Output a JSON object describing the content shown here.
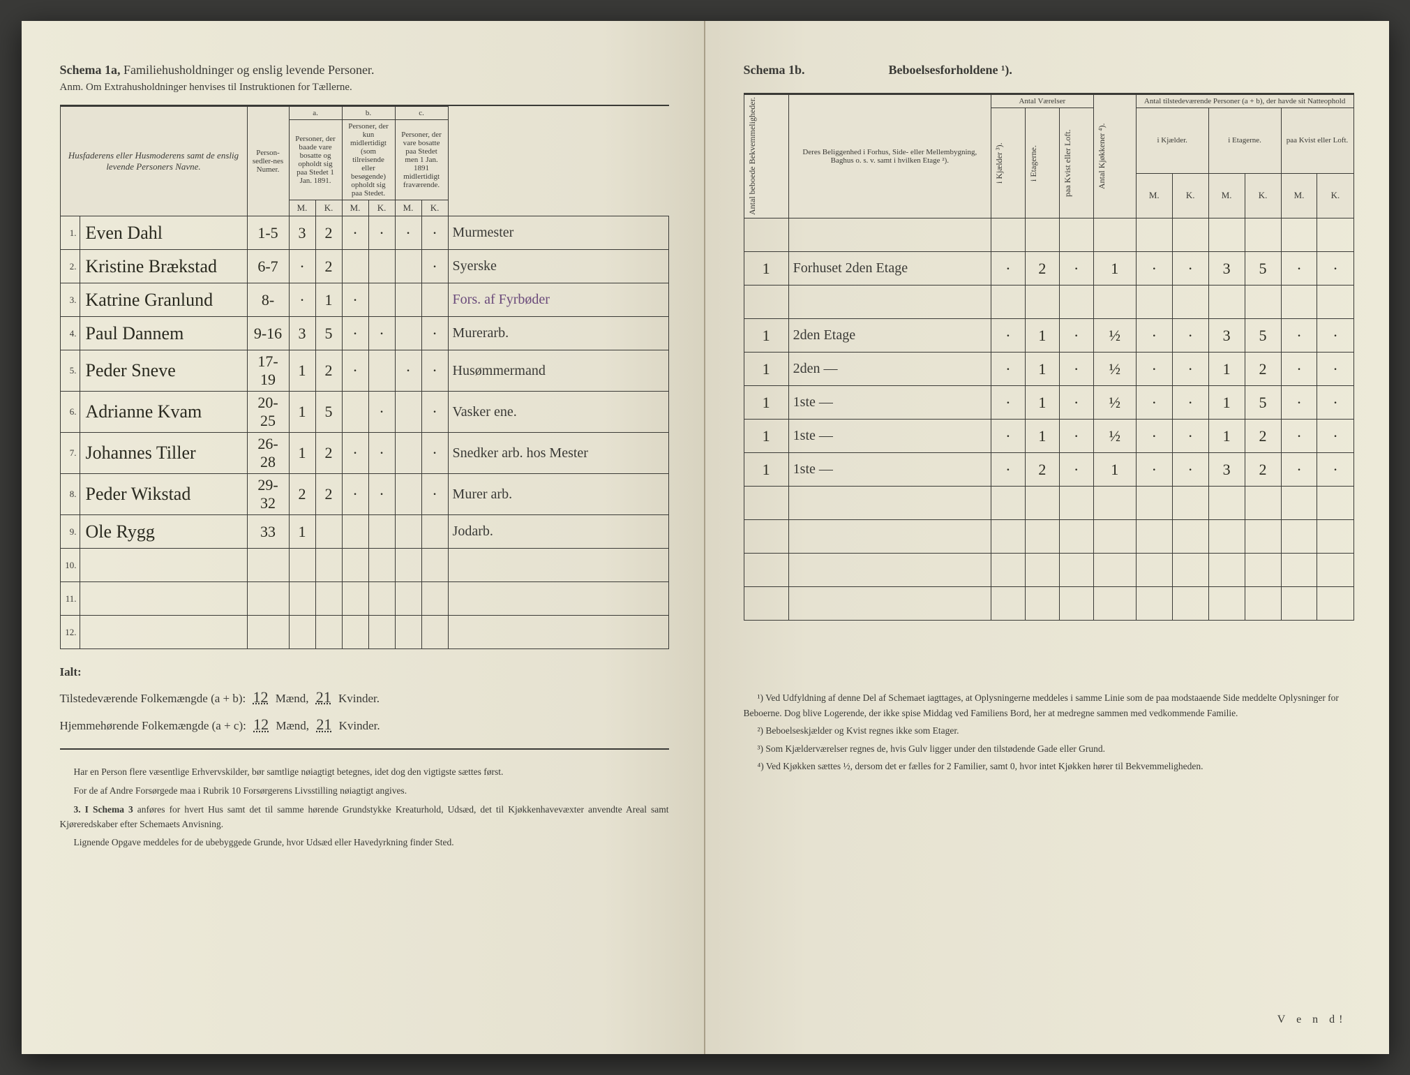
{
  "left": {
    "title_bold": "Schema 1a,",
    "title_rest": "Familiehusholdninger og enslig levende Personer.",
    "sub": "Anm. Om Extrahusholdninger henvises til Instruktionen for Tællerne.",
    "col_name": "Husfaderens eller Husmoderens samt de enslig levende Personers Navne.",
    "col_num": "Person-sedler-nes Numer.",
    "col_a_head": "a.",
    "col_a": "Personer, der baade vare bosatte og opholdt sig paa Stedet 1 Jan. 1891.",
    "col_b_head": "b.",
    "col_b": "Personer, der kun midlertidigt (som tilreisende eller besøgende) opholdt sig paa Stedet.",
    "col_c_head": "c.",
    "col_c": "Personer, der vare bosatte paa Stedet men 1 Jan. 1891 midlertidigt fraværende.",
    "mk_m": "M.",
    "mk_k": "K.",
    "rows": [
      {
        "n": "1.",
        "name": "Even Dahl",
        "num": "1-5",
        "aM": "3",
        "aK": "2",
        "bM": "·",
        "bK": "·",
        "cM": "·",
        "cK": "·",
        "occ": "Murmester"
      },
      {
        "n": "2.",
        "name": "Kristine Brækstad",
        "num": "6-7",
        "aM": "·",
        "aK": "2",
        "bM": "",
        "bK": "",
        "cM": "",
        "cK": "·",
        "occ": "Syerske"
      },
      {
        "n": "3.",
        "name": "Katrine Granlund",
        "num": "8-",
        "aM": "·",
        "aK": "1",
        "bM": "·",
        "bK": "",
        "cM": "",
        "cK": "",
        "occ": "Fors. af Fyrbøder"
      },
      {
        "n": "4.",
        "name": "Paul Dannem",
        "num": "9-16",
        "aM": "3",
        "aK": "5",
        "bM": "·",
        "bK": "·",
        "cM": "",
        "cK": "·",
        "occ": "Murerarb."
      },
      {
        "n": "5.",
        "name": "Peder Sneve",
        "num": "17-19",
        "aM": "1",
        "aK": "2",
        "bM": "·",
        "bK": "",
        "cM": "·",
        "cK": "·",
        "occ": "Husømmermand"
      },
      {
        "n": "6.",
        "name": "Adrianne Kvam",
        "num": "20-25",
        "aM": "1",
        "aK": "5",
        "bM": "",
        "bK": "·",
        "cM": "",
        "cK": "·",
        "occ": "Vasker ene."
      },
      {
        "n": "7.",
        "name": "Johannes Tiller",
        "num": "26-28",
        "aM": "1",
        "aK": "2",
        "bM": "·",
        "bK": "·",
        "cM": "",
        "cK": "·",
        "occ": "Snedker arb. hos Mester"
      },
      {
        "n": "8.",
        "name": "Peder Wikstad",
        "num": "29-32",
        "aM": "2",
        "aK": "2",
        "bM": "·",
        "bK": "·",
        "cM": "",
        "cK": "·",
        "occ": "Murer arb."
      },
      {
        "n": "9.",
        "name": "Ole Rygg",
        "num": "33",
        "aM": "1",
        "aK": "",
        "bM": "",
        "bK": "",
        "cM": "",
        "cK": "",
        "occ": "Jodarb."
      },
      {
        "n": "10.",
        "name": "",
        "num": "",
        "aM": "",
        "aK": "",
        "bM": "",
        "bK": "",
        "cM": "",
        "cK": "",
        "occ": ""
      },
      {
        "n": "11.",
        "name": "",
        "num": "",
        "aM": "",
        "aK": "",
        "bM": "",
        "bK": "",
        "cM": "",
        "cK": "",
        "occ": ""
      },
      {
        "n": "12.",
        "name": "",
        "num": "",
        "aM": "",
        "aK": "",
        "bM": "",
        "bK": "",
        "cM": "",
        "cK": "",
        "occ": ""
      }
    ],
    "ialt": "Ialt:",
    "tot1_label": "Tilstedeværende Folkemængde (a + b):",
    "tot1_m": "12",
    "tot1_m_unit": "Mænd,",
    "tot1_k": "21",
    "tot1_k_unit": "Kvinder.",
    "tot2_label": "Hjemmehørende Folkemængde (a + c):",
    "tot2_m": "12",
    "tot2_m_unit": "Mænd,",
    "tot2_k": "21",
    "tot2_k_unit": "Kvinder.",
    "fp1": "Har en Person flere væsentlige Erhvervskilder, bør samtlige nøiagtigt betegnes, idet dog den vigtigste sættes først.",
    "fp2": "For de af Andre Forsørgede maa i Rubrik 10 Forsørgerens Livsstilling nøiagtigt angives.",
    "fp3_lead": "3. I Schema 3",
    "fp3": "anføres for hvert Hus samt det til samme hørende Grundstykke Kreaturhold, Udsæd, det til Kjøkkenhavevæxter anvendte Areal samt Kjøreredskaber efter Schemaets Anvisning.",
    "fp4": "Lignende Opgave meddeles for de ubebyggede Grunde, hvor Udsæd eller Havedyrkning finder Sted."
  },
  "right": {
    "title_a": "Schema 1b.",
    "title_b": "Beboelsesforholdene ¹).",
    "col_bekv": "Antal beboede Bekvemmeligheder.",
    "col_belig": "Deres Beliggenhed i Forhus, Side- eller Mellembygning, Baghus o. s. v. samt i hvilken Etage ²).",
    "col_vaer": "Antal Værelser",
    "col_kjeld": "i Kjælder ³).",
    "col_etag": "i Etagerne.",
    "col_kvist": "paa Kvist eller Loft.",
    "col_kjok": "Antal Kjøkkener ⁴).",
    "col_pers": "Antal tilstedeværende Personer (a + b), der havde sit Natteophold",
    "col_p_kjeld": "i Kjælder.",
    "col_p_etag": "i Etagerne.",
    "col_p_kvist": "paa Kvist eller Loft.",
    "mk_m": "M.",
    "mk_k": "K.",
    "rows": [
      {
        "b": "",
        "loc": "",
        "kj": "",
        "et": "",
        "kv": "",
        "kk": "",
        "pkm": "",
        "pkk": "",
        "pem": "",
        "pek": "",
        "pvm": "",
        "pvk": ""
      },
      {
        "b": "1",
        "loc": "Forhuset 2den Etage",
        "kj": "·",
        "et": "2",
        "kv": "·",
        "kk": "1",
        "pkm": "·",
        "pkk": "·",
        "pem": "3",
        "pek": "5",
        "pvm": "·",
        "pvk": "·"
      },
      {
        "b": "",
        "loc": "",
        "kj": "",
        "et": "",
        "kv": "",
        "kk": "",
        "pkm": "",
        "pkk": "",
        "pem": "",
        "pek": "",
        "pvm": "",
        "pvk": ""
      },
      {
        "b": "1",
        "loc": "2den Etage",
        "kj": "·",
        "et": "1",
        "kv": "·",
        "kk": "½",
        "pkm": "·",
        "pkk": "·",
        "pem": "3",
        "pek": "5",
        "pvm": "·",
        "pvk": "·"
      },
      {
        "b": "1",
        "loc": "2den   —",
        "kj": "·",
        "et": "1",
        "kv": "·",
        "kk": "½",
        "pkm": "·",
        "pkk": "·",
        "pem": "1",
        "pek": "2",
        "pvm": "·",
        "pvk": "·"
      },
      {
        "b": "1",
        "loc": "1ste   —",
        "kj": "·",
        "et": "1",
        "kv": "·",
        "kk": "½",
        "pkm": "·",
        "pkk": "·",
        "pem": "1",
        "pek": "5",
        "pvm": "·",
        "pvk": "·"
      },
      {
        "b": "1",
        "loc": "1ste   —",
        "kj": "·",
        "et": "1",
        "kv": "·",
        "kk": "½",
        "pkm": "·",
        "pkk": "·",
        "pem": "1",
        "pek": "2",
        "pvm": "·",
        "pvk": "·"
      },
      {
        "b": "1",
        "loc": "1ste   —",
        "kj": "·",
        "et": "2",
        "kv": "·",
        "kk": "1",
        "pkm": "·",
        "pkk": "·",
        "pem": "3",
        "pek": "2",
        "pvm": "·",
        "pvk": "·"
      },
      {
        "b": "",
        "loc": "",
        "kj": "",
        "et": "",
        "kv": "",
        "kk": "",
        "pkm": "",
        "pkk": "",
        "pem": "",
        "pek": "",
        "pvm": "",
        "pvk": ""
      },
      {
        "b": "",
        "loc": "",
        "kj": "",
        "et": "",
        "kv": "",
        "kk": "",
        "pkm": "",
        "pkk": "",
        "pem": "",
        "pek": "",
        "pvm": "",
        "pvk": ""
      },
      {
        "b": "",
        "loc": "",
        "kj": "",
        "et": "",
        "kv": "",
        "kk": "",
        "pkm": "",
        "pkk": "",
        "pem": "",
        "pek": "",
        "pvm": "",
        "pvk": ""
      },
      {
        "b": "",
        "loc": "",
        "kj": "",
        "et": "",
        "kv": "",
        "kk": "",
        "pkm": "",
        "pkk": "",
        "pem": "",
        "pek": "",
        "pvm": "",
        "pvk": ""
      }
    ],
    "fn1": "¹) Ved Udfyldning af denne Del af Schemaet iagttages, at Oplysningerne meddeles i samme Linie som de paa modstaaende Side meddelte Oplysninger for Beboerne. Dog blive Logerende, der ikke spise Middag ved Familiens Bord, her at medregne sammen med vedkommende Familie.",
    "fn2": "²) Beboelseskjælder og Kvist regnes ikke som Etager.",
    "fn3": "³) Som Kjælderværelser regnes de, hvis Gulv ligger under den tilstødende Gade eller Grund.",
    "fn4": "⁴) Ved Kjøkken sættes ½, dersom det er fælles for 2 Familier, samt 0, hvor intet Kjøkken hører til Bekvemmeligheden.",
    "vend": "V e n d!"
  },
  "colors": {
    "bg": "#e8e4d4",
    "ink": "#3a3a36",
    "hand": "#2a2a20",
    "purple": "#6a4a7a"
  }
}
